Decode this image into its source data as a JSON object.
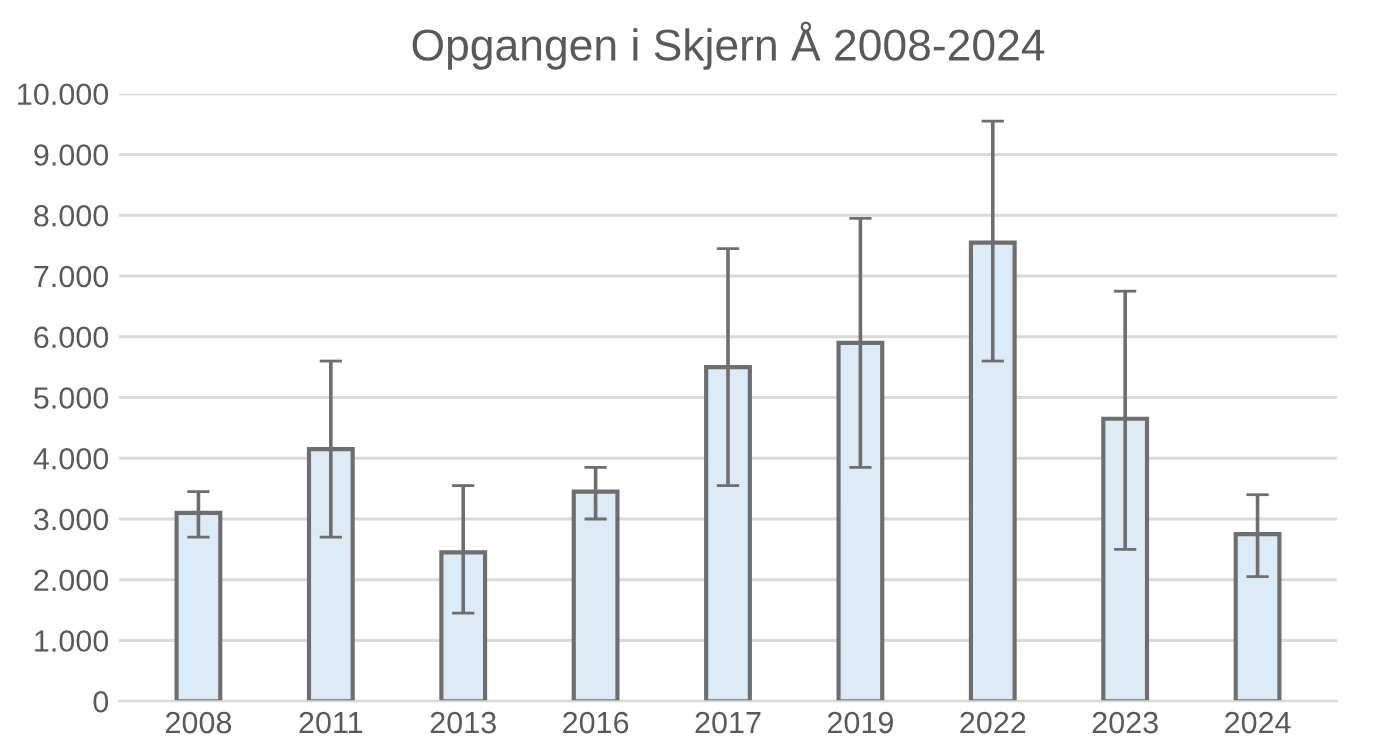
{
  "chart_data": {
    "type": "bar",
    "title": "Opgangen i Skjern Å 2008-2024",
    "categories": [
      "2008",
      "2011",
      "2013",
      "2016",
      "2017",
      "2019",
      "2022",
      "2023",
      "2024"
    ],
    "values": [
      3100,
      4150,
      2450,
      3450,
      5500,
      5900,
      7550,
      4650,
      2750
    ],
    "errors": [
      [
        2700,
        3450
      ],
      [
        2700,
        5600
      ],
      [
        1450,
        3550
      ],
      [
        3000,
        3850
      ],
      [
        3550,
        7450
      ],
      [
        3850,
        7950
      ],
      [
        5600,
        9550
      ],
      [
        2500,
        6750
      ],
      [
        2050,
        3400
      ]
    ],
    "color": "#ddebf7",
    "ylim": [
      0,
      10000
    ],
    "yticks": [
      {
        "value": 0,
        "label": "0"
      },
      {
        "value": 1000,
        "label": "1.000"
      },
      {
        "value": 2000,
        "label": "2.000"
      },
      {
        "value": 3000,
        "label": "3.000"
      },
      {
        "value": 4000,
        "label": "4.000"
      },
      {
        "value": 5000,
        "label": "5.000"
      },
      {
        "value": 6000,
        "label": "6.000"
      },
      {
        "value": 7000,
        "label": "7.000"
      },
      {
        "value": 8000,
        "label": "8.000"
      },
      {
        "value": 9000,
        "label": "9.000"
      },
      {
        "value": 10000,
        "label": "10.000"
      }
    ],
    "grid": "y"
  }
}
